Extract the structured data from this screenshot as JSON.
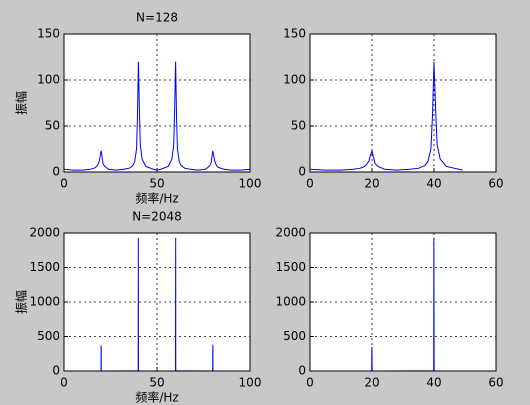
{
  "chart_data": [
    {
      "type": "line",
      "title": "N=128",
      "xlabel": "频率/Hz",
      "ylabel": "振幅",
      "color": "#0000ff",
      "grid": true,
      "xlim": [
        0,
        100
      ],
      "xticks": [
        0,
        50,
        100
      ],
      "ylim": [
        0,
        150
      ],
      "yticks": [
        0,
        50,
        100,
        150
      ],
      "x": [
        0,
        5,
        10,
        14,
        16,
        17,
        18,
        19,
        19.5,
        20,
        20.5,
        21,
        22,
        24,
        28,
        32,
        35,
        37,
        38,
        39,
        39.5,
        40,
        40.5,
        41,
        42,
        44,
        48,
        50,
        52,
        56,
        58,
        59,
        59.5,
        60,
        60.5,
        61,
        62,
        63,
        65,
        68,
        72,
        76,
        78,
        79,
        79.5,
        80,
        80.5,
        81,
        82,
        83,
        86,
        90,
        95,
        100
      ],
      "values": [
        3,
        2,
        2,
        3,
        4,
        5,
        7,
        12,
        18,
        23,
        16,
        9,
        6,
        3,
        2,
        3,
        4,
        7,
        11,
        25,
        60,
        120,
        70,
        30,
        14,
        6,
        3,
        2,
        3,
        6,
        14,
        30,
        70,
        120,
        60,
        25,
        11,
        7,
        4,
        3,
        2,
        3,
        6,
        9,
        16,
        23,
        18,
        12,
        7,
        5,
        3,
        2,
        2,
        3
      ]
    },
    {
      "type": "line",
      "color": "#0000ff",
      "grid": true,
      "xlim": [
        0,
        60
      ],
      "xticks": [
        0,
        20,
        40,
        60
      ],
      "ylim": [
        0,
        150
      ],
      "yticks": [
        0,
        50,
        100,
        150
      ],
      "x": [
        0,
        5,
        10,
        14,
        16,
        17,
        18,
        19,
        19.5,
        20,
        20.5,
        21,
        22,
        24,
        28,
        32,
        35,
        37,
        38,
        39,
        39.5,
        40,
        40.5,
        41,
        42,
        44,
        48,
        49.2
      ],
      "values": [
        3,
        2,
        2,
        3,
        4,
        5,
        7,
        12,
        18,
        23,
        16,
        9,
        6,
        3,
        2,
        3,
        4,
        7,
        11,
        25,
        60,
        120,
        70,
        30,
        14,
        6,
        3,
        2
      ]
    },
    {
      "type": "line",
      "title": "N=2048",
      "xlabel": "频率/Hz",
      "ylabel": "振幅",
      "color": "#0000ff",
      "grid": true,
      "xlim": [
        0,
        100
      ],
      "xticks": [
        0,
        50,
        100
      ],
      "ylim": [
        0,
        2000
      ],
      "yticks": [
        0,
        500,
        1000,
        1500,
        2000
      ],
      "x": [
        0,
        19.9,
        19.95,
        20,
        20.05,
        20.1,
        39.9,
        39.95,
        40,
        40.05,
        40.1,
        59.9,
        59.95,
        60,
        60.05,
        60.1,
        79.9,
        79.95,
        80,
        80.05,
        80.1,
        100
      ],
      "values": [
        0,
        2,
        370,
        330,
        2,
        0,
        3,
        1930,
        1200,
        3,
        0,
        0,
        3,
        1200,
        1930,
        3,
        0,
        2,
        330,
        380,
        2,
        0
      ]
    },
    {
      "type": "line",
      "color": "#0000ff",
      "grid": true,
      "xlim": [
        0,
        60
      ],
      "xticks": [
        0,
        20,
        40,
        60
      ],
      "ylim": [
        0,
        2000
      ],
      "yticks": [
        0,
        500,
        1000,
        1500,
        2000
      ],
      "x": [
        0,
        19.9,
        19.95,
        20,
        20.05,
        20.1,
        39.9,
        39.95,
        40,
        40.05,
        40.1,
        49.98
      ],
      "values": [
        0,
        2,
        350,
        300,
        2,
        0,
        3,
        1930,
        1250,
        3,
        0,
        0
      ]
    }
  ]
}
